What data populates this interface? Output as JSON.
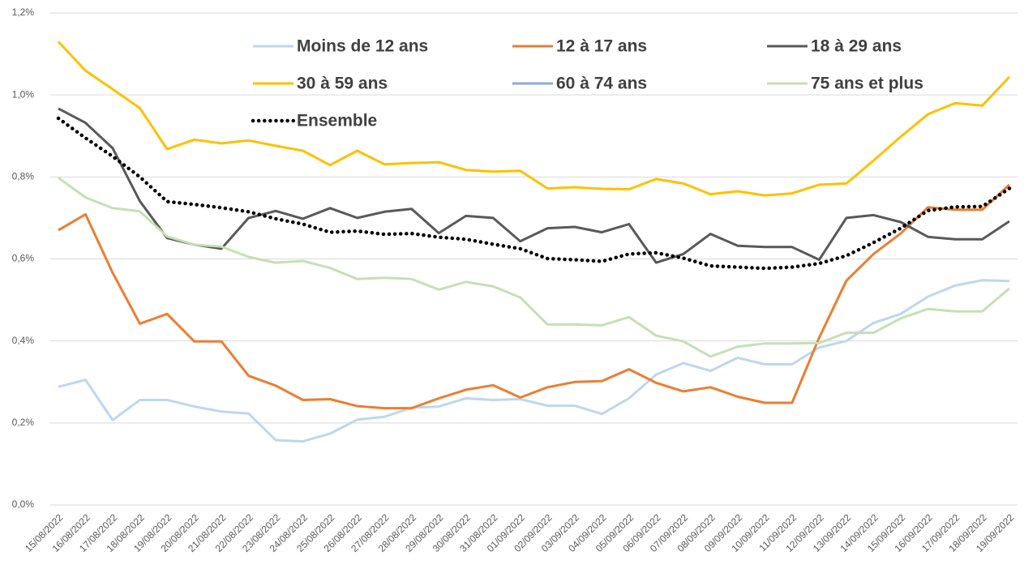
{
  "chart_data": {
    "type": "line",
    "categories": [
      "15/08/2022",
      "16/08/2022",
      "17/08/2022",
      "18/08/2022",
      "19/08/2022",
      "20/08/2022",
      "21/08/2022",
      "22/08/2022",
      "23/08/2022",
      "24/08/2022",
      "25/08/2022",
      "26/08/2022",
      "27/08/2022",
      "28/08/2022",
      "29/08/2022",
      "30/08/2022",
      "31/08/2022",
      "01/09/2022",
      "02/09/2022",
      "03/09/2022",
      "04/09/2022",
      "05/09/2022",
      "06/09/2022",
      "07/09/2022",
      "08/09/2022",
      "09/09/2022",
      "10/09/2022",
      "11/09/2022",
      "12/09/2022",
      "13/09/2022",
      "14/09/2022",
      "15/09/2022",
      "16/09/2022",
      "17/09/2022",
      "18/09/2022",
      "19/09/2022"
    ],
    "ylim": [
      0,
      1.2
    ],
    "yticks": [
      {
        "value": 0,
        "label": "0,0%"
      },
      {
        "value": 0.2,
        "label": "0,2%"
      },
      {
        "value": 0.4,
        "label": "0,4%"
      },
      {
        "value": 0.6,
        "label": "0,6%"
      },
      {
        "value": 0.8,
        "label": "0,8%"
      },
      {
        "value": 1.0,
        "label": "1,0%"
      },
      {
        "value": 1.2,
        "label": "1,2%"
      }
    ],
    "grid": true,
    "series": [
      {
        "name": "Moins de 12 ans",
        "color": "#bdd7ee",
        "values": [
          0.288,
          0.305,
          0.207,
          0.256,
          0.256,
          0.24,
          0.228,
          0.223,
          0.158,
          0.155,
          0.174,
          0.208,
          0.215,
          0.237,
          0.24,
          0.26,
          0.256,
          0.258,
          0.242,
          0.242,
          0.222,
          0.26,
          0.318,
          0.346,
          0.327,
          0.359,
          0.343,
          0.343,
          0.384,
          0.4,
          0.444,
          0.466,
          0.508,
          0.535,
          0.548,
          0.546
        ]
      },
      {
        "name": "12 à 17 ans",
        "color": "#ed7d31",
        "values": [
          0.67,
          0.709,
          0.566,
          0.442,
          0.466,
          0.399,
          0.399,
          0.315,
          0.291,
          0.256,
          0.258,
          0.241,
          0.236,
          0.236,
          0.26,
          0.281,
          0.292,
          0.262,
          0.287,
          0.3,
          0.302,
          0.331,
          0.298,
          0.277,
          0.287,
          0.264,
          0.249,
          0.249,
          0.408,
          0.547,
          0.612,
          0.662,
          0.726,
          0.72,
          0.72,
          0.781
        ]
      },
      {
        "name": "18 à 29 ans",
        "color": "#595959",
        "values": [
          0.967,
          0.932,
          0.87,
          0.741,
          0.651,
          0.635,
          0.625,
          0.7,
          0.717,
          0.698,
          0.724,
          0.7,
          0.715,
          0.722,
          0.663,
          0.705,
          0.7,
          0.643,
          0.675,
          0.678,
          0.665,
          0.685,
          0.591,
          0.612,
          0.661,
          0.632,
          0.629,
          0.629,
          0.598,
          0.7,
          0.707,
          0.69,
          0.654,
          0.648,
          0.648,
          0.692
        ]
      },
      {
        "name": "30 à 59 ans",
        "color": "#ffc000",
        "values": [
          1.13,
          1.059,
          1.014,
          0.968,
          0.868,
          0.891,
          0.882,
          0.889,
          0.876,
          0.864,
          0.829,
          0.864,
          0.831,
          0.834,
          0.836,
          0.817,
          0.813,
          0.815,
          0.772,
          0.775,
          0.771,
          0.77,
          0.795,
          0.784,
          0.758,
          0.765,
          0.755,
          0.76,
          0.781,
          0.784,
          0.84,
          0.898,
          0.953,
          0.98,
          0.974,
          1.044
        ]
      },
      {
        "name": "60 à 74 ans",
        "color": "#8faadc",
        "values": [
          null,
          null,
          null,
          null,
          null,
          null,
          null,
          null,
          null,
          null,
          null,
          null,
          null,
          null,
          null,
          null,
          null,
          null,
          null,
          null,
          null,
          null,
          null,
          null,
          null,
          null,
          null,
          null,
          null,
          null,
          null,
          null,
          null,
          null,
          null,
          null
        ]
      },
      {
        "name": "75 ans et plus",
        "color": "#c5e0b4",
        "values": [
          0.798,
          0.75,
          0.724,
          0.716,
          0.655,
          0.635,
          0.63,
          0.605,
          0.591,
          0.595,
          0.578,
          0.551,
          0.554,
          0.551,
          0.525,
          0.544,
          0.533,
          0.506,
          0.44,
          0.44,
          0.438,
          0.458,
          0.413,
          0.399,
          0.362,
          0.386,
          0.394,
          0.394,
          0.395,
          0.42,
          0.42,
          0.455,
          0.478,
          0.472,
          0.472,
          0.528
        ]
      },
      {
        "name": "Ensemble",
        "color": "#000000",
        "dotted": true,
        "values": [
          0.943,
          0.895,
          0.85,
          0.8,
          0.74,
          0.733,
          0.725,
          0.715,
          0.698,
          0.685,
          0.665,
          0.668,
          0.66,
          0.662,
          0.653,
          0.648,
          0.636,
          0.625,
          0.601,
          0.598,
          0.594,
          0.612,
          0.615,
          0.602,
          0.583,
          0.58,
          0.577,
          0.58,
          0.589,
          0.608,
          0.64,
          0.675,
          0.718,
          0.727,
          0.728,
          0.772
        ]
      }
    ]
  }
}
